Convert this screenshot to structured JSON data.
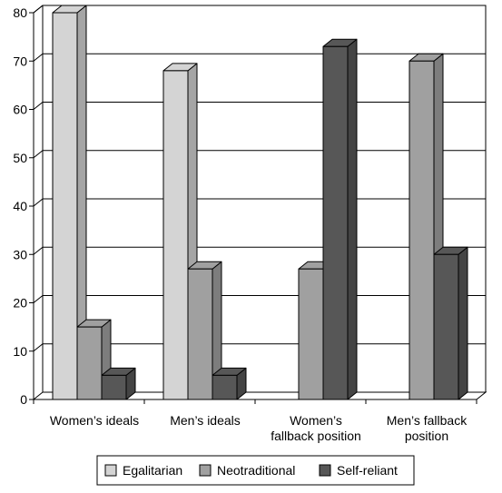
{
  "chart_data": {
    "type": "bar",
    "title": "",
    "xlabel": "",
    "ylabel": "",
    "ylim": [
      0,
      80
    ],
    "yticks": [
      0,
      10,
      20,
      30,
      40,
      50,
      60,
      70,
      80
    ],
    "grid": true,
    "legend_position": "bottom",
    "categories": [
      [
        "Women’s ideals"
      ],
      [
        "Men’s ideals"
      ],
      [
        "Women’s",
        "fallback position"
      ],
      [
        "Men’s fallback",
        "position"
      ]
    ],
    "series": [
      {
        "name": "Egalitarian",
        "color": "#d4d4d4",
        "values": [
          80,
          68,
          0,
          0
        ]
      },
      {
        "name": "Neotraditional",
        "color": "#a0a0a0",
        "values": [
          15,
          27,
          27,
          70
        ]
      },
      {
        "name": "Self-reliant",
        "color": "#575757",
        "values": [
          5,
          5,
          73,
          30
        ]
      }
    ]
  }
}
